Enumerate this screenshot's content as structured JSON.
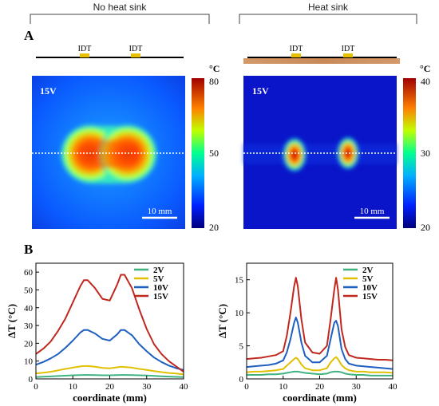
{
  "header": {
    "left_group": "No heat sink",
    "right_group": "Heat sink"
  },
  "panel_labels": {
    "a": "A",
    "b": "B"
  },
  "thermal_maps": [
    {
      "voltage_label": "15V",
      "idt_labels": [
        "IDT",
        "IDT"
      ],
      "colorbar": {
        "unit": "°C",
        "ticks": [
          "80",
          "50",
          "20"
        ]
      },
      "scale_bar": "10 mm",
      "colors": {
        "background": "#0a5aff",
        "hot": "#b40000"
      }
    },
    {
      "voltage_label": "15V",
      "idt_labels": [
        "IDT",
        "IDT"
      ],
      "colorbar": {
        "unit": "°C",
        "ticks": [
          "40",
          "30",
          "20"
        ]
      },
      "scale_bar": "10 mm",
      "colors": {
        "background": "#0a14c8",
        "hot": "#b40000"
      }
    }
  ],
  "chart_data": [
    {
      "type": "line",
      "xlabel": "coordinate (mm)",
      "ylabel": "ΔT (°C)",
      "xlim": [
        0,
        40
      ],
      "ylim": [
        0,
        65
      ],
      "xticks": [
        "0",
        "10",
        "20",
        "30",
        "40"
      ],
      "yticks": [
        "0",
        "10",
        "20",
        "30",
        "40",
        "50",
        "60"
      ],
      "legend_position": "top-right",
      "x": [
        0,
        2,
        4,
        6,
        8,
        10,
        12,
        13,
        14,
        16,
        18,
        20,
        22,
        23,
        24,
        26,
        28,
        30,
        32,
        34,
        36,
        38,
        40
      ],
      "series": [
        {
          "name": "2V",
          "color": "#3fb27f",
          "values": [
            1,
            1.2,
            1.4,
            1.6,
            1.8,
            2,
            2.1,
            2.2,
            2.2,
            2.1,
            2,
            2,
            2.1,
            2.2,
            2.2,
            2.1,
            2,
            1.9,
            1.7,
            1.5,
            1.3,
            1.1,
            1
          ]
        },
        {
          "name": "5V",
          "color": "#e0c000",
          "values": [
            3,
            3.5,
            4,
            4.8,
            5.6,
            6.3,
            7,
            7.2,
            7.2,
            6.8,
            6.2,
            5.9,
            6.5,
            6.8,
            6.7,
            6.3,
            5.6,
            5,
            4.4,
            3.8,
            3.3,
            3,
            2.5
          ]
        },
        {
          "name": "10V",
          "color": "#1f5fbf",
          "values": [
            8,
            9.5,
            11.5,
            14,
            17.5,
            21.5,
            26,
            27.5,
            27.5,
            25.5,
            22.5,
            21.5,
            25,
            27.5,
            27.5,
            24.5,
            19.5,
            15.5,
            12,
            9.5,
            7.5,
            6,
            5
          ]
        },
        {
          "name": "15V",
          "color": "#c0281e",
          "values": [
            14,
            17,
            21,
            27,
            34,
            43,
            52,
            55.5,
            55.5,
            51,
            45,
            44,
            53,
            58.5,
            58.5,
            51,
            39,
            28,
            19.5,
            14,
            10,
            7,
            4
          ]
        }
      ]
    },
    {
      "type": "line",
      "xlabel": "coordinate (mm)",
      "ylabel": "ΔT (°C)",
      "xlim": [
        0,
        40
      ],
      "ylim": [
        0,
        17.5
      ],
      "xticks": [
        "0",
        "10",
        "20",
        "30",
        "40"
      ],
      "yticks": [
        "0",
        "5",
        "10",
        "15"
      ],
      "legend_position": "top-right",
      "x": [
        0,
        2,
        4,
        6,
        8,
        10,
        11,
        12,
        13,
        13.5,
        14,
        15,
        16,
        18,
        20,
        22,
        23,
        24,
        24.5,
        25,
        26,
        27,
        28,
        30,
        32,
        34,
        36,
        38,
        40
      ],
      "series": [
        {
          "name": "2V",
          "color": "#3fb27f",
          "values": [
            0.6,
            0.6,
            0.6,
            0.7,
            0.7,
            0.8,
            0.9,
            1,
            1.1,
            1.1,
            1.1,
            1,
            0.9,
            0.8,
            0.7,
            0.8,
            1,
            1.1,
            1.1,
            1.1,
            1,
            0.8,
            0.7,
            0.6,
            0.6,
            0.5,
            0.5,
            0.5,
            0.5
          ]
        },
        {
          "name": "5V",
          "color": "#e0c000",
          "values": [
            1,
            1.1,
            1.1,
            1.2,
            1.3,
            1.5,
            2,
            2.5,
            3,
            3.2,
            3,
            2.2,
            1.6,
            1.3,
            1.3,
            1.6,
            2.5,
            3.1,
            3.3,
            3,
            2.1,
            1.6,
            1.3,
            1.1,
            1.1,
            1,
            1,
            1,
            0.9
          ]
        },
        {
          "name": "10V",
          "color": "#1f5fbf",
          "values": [
            1.8,
            1.9,
            2,
            2.1,
            2.3,
            2.8,
            4,
            6,
            8.5,
            9.3,
            8.5,
            5.5,
            3.5,
            2.5,
            2.5,
            3.5,
            6,
            8.5,
            8.8,
            8,
            4.5,
            3,
            2.3,
            2,
            1.9,
            1.8,
            1.7,
            1.6,
            1.5
          ]
        },
        {
          "name": "15V",
          "color": "#c0281e",
          "values": [
            3,
            3.1,
            3.2,
            3.4,
            3.6,
            4.2,
            6.5,
            10,
            14,
            15.3,
            14,
            9,
            5.5,
            4,
            3.8,
            5,
            9,
            13.5,
            15.3,
            13.5,
            7.5,
            4.8,
            3.6,
            3.2,
            3.1,
            3,
            2.9,
            2.9,
            2.8
          ]
        }
      ]
    }
  ]
}
